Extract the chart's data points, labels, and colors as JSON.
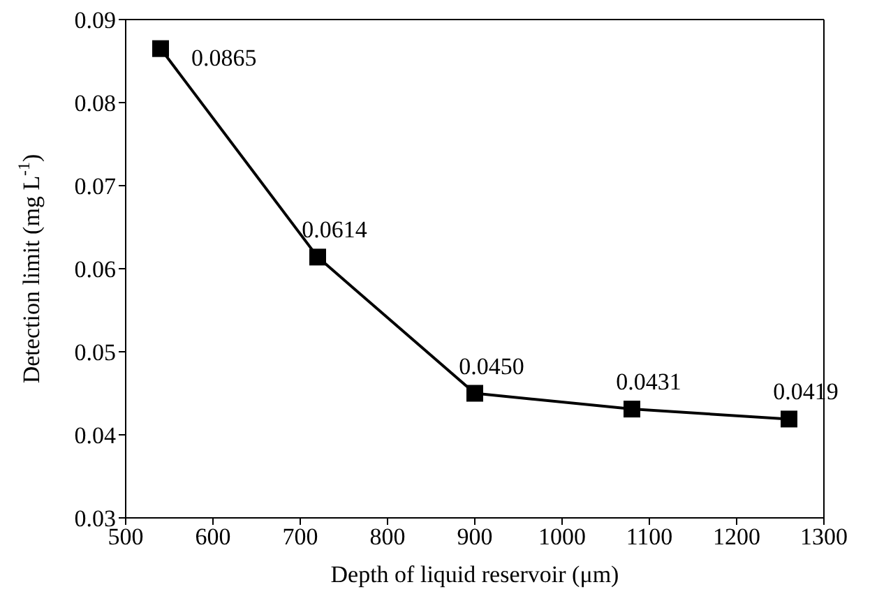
{
  "chart_data": {
    "type": "line",
    "xlabel": "Depth of liquid reservoir (μm)",
    "ylabel": "Detection limit (mg L$^{-1}$)",
    "x": [
      540,
      720,
      900,
      1080,
      1260
    ],
    "series": [
      {
        "color": "#000000",
        "values": [
          0.0865,
          0.0614,
          0.045,
          0.0431,
          0.0419
        ],
        "value_labels": [
          "0.0865",
          "0.0614",
          "0.0450",
          "0.0431",
          "0.0419"
        ]
      }
    ],
    "xlim": [
      500,
      1300
    ],
    "xticks": [
      500,
      600,
      700,
      800,
      900,
      1000,
      1100,
      1200,
      1300
    ],
    "ylim": [
      0.03,
      0.09
    ],
    "yticks": [
      0.03,
      0.04,
      0.05,
      0.06,
      0.07,
      0.08,
      0.09
    ],
    "marker": "square",
    "line_style": "solid",
    "grid": false,
    "legend": false
  }
}
